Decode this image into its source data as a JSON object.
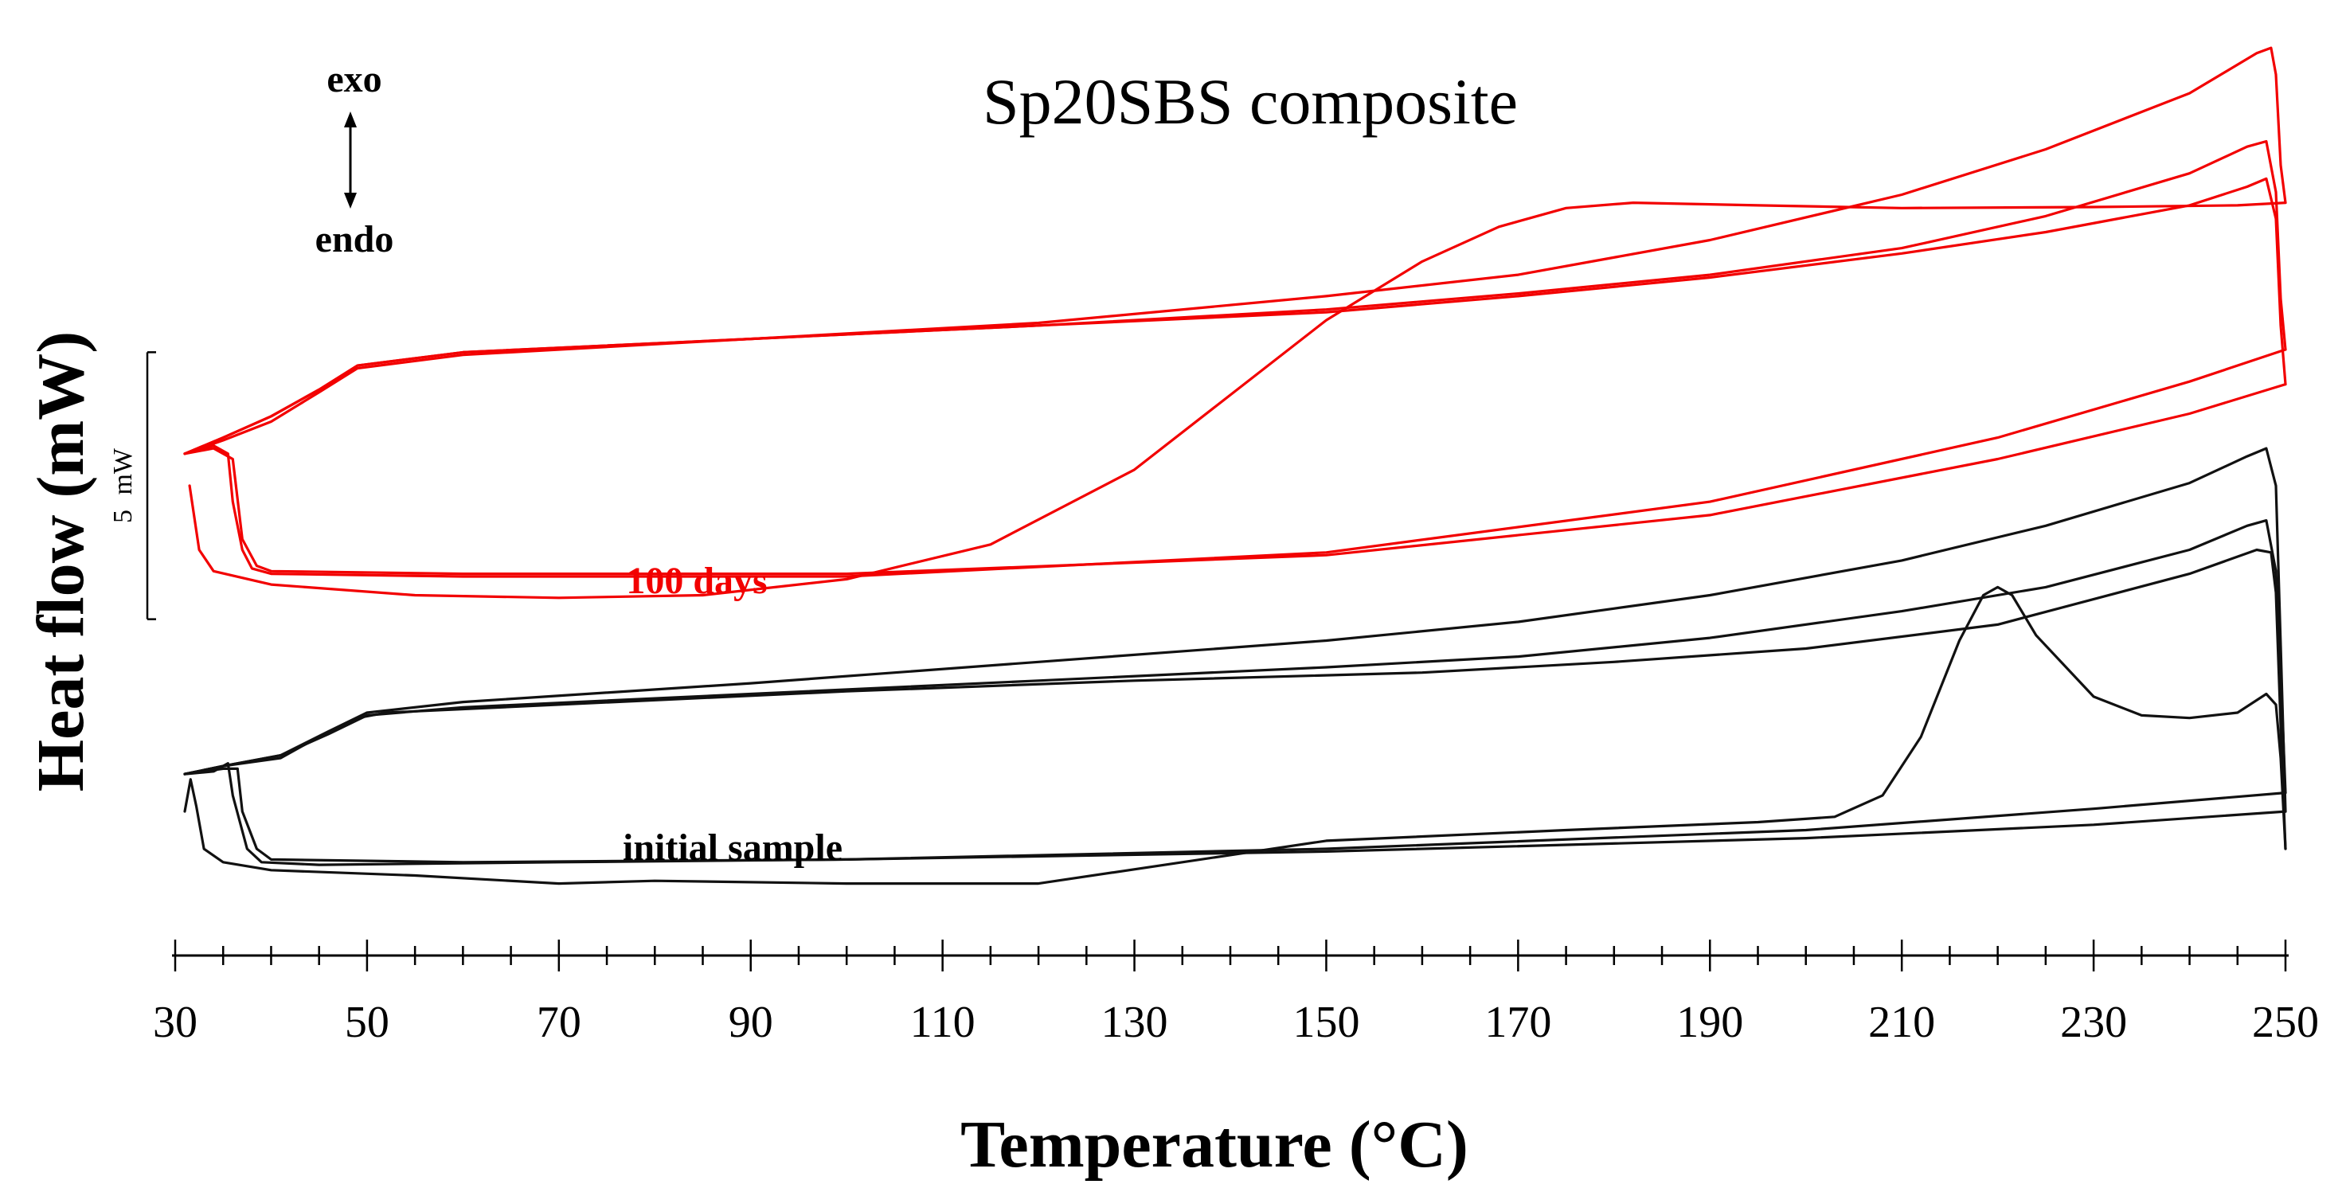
{
  "chart_data": {
    "type": "line",
    "title": "Sp20SBS composite",
    "xlabel": "Temperature (°C)",
    "ylabel": "Heat flow (mW)",
    "xlim": [
      30,
      250
    ],
    "ylim": [
      -6.0,
      11.0
    ],
    "x_ticks": [
      "30",
      "50",
      "70",
      "90",
      "110",
      "130",
      "150",
      "170",
      "190",
      "210",
      "230",
      "250"
    ],
    "x_minor_tick_step": 5,
    "grid": false,
    "scale_bar": {
      "label": "5 mW",
      "from": 0,
      "to": 5
    },
    "annotations": {
      "exo": "exo",
      "endo": "endo",
      "red_group": "100 days",
      "black_group": "initial sample"
    },
    "colors": {
      "red": "#f20000",
      "black": "#111111"
    },
    "series": [
      {
        "name": "100 days - first heating",
        "group": "red",
        "color": "#f20000",
        "points": [
          [
            31.5,
            2.5
          ],
          [
            32.5,
            1.3
          ],
          [
            34,
            0.9
          ],
          [
            40,
            0.65
          ],
          [
            55,
            0.45
          ],
          [
            70,
            0.4
          ],
          [
            85,
            0.45
          ],
          [
            100,
            0.75
          ],
          [
            115,
            1.4
          ],
          [
            130,
            2.8
          ],
          [
            140,
            4.2
          ],
          [
            150,
            5.6
          ],
          [
            160,
            6.7
          ],
          [
            168,
            7.35
          ],
          [
            175,
            7.7
          ],
          [
            182,
            7.8
          ],
          [
            195,
            7.75
          ],
          [
            210,
            7.7
          ],
          [
            230,
            7.72
          ],
          [
            245,
            7.75
          ],
          [
            250,
            7.8
          ]
        ]
      },
      {
        "name": "100 days - first cooling",
        "group": "red",
        "color": "#f20000",
        "points": [
          [
            250,
            7.8
          ],
          [
            249.5,
            8.5
          ],
          [
            249,
            10.2
          ],
          [
            248.5,
            10.7
          ],
          [
            247,
            10.6
          ],
          [
            240,
            9.85
          ],
          [
            225,
            8.8
          ],
          [
            210,
            7.95
          ],
          [
            190,
            7.1
          ],
          [
            170,
            6.45
          ],
          [
            150,
            6.05
          ],
          [
            120,
            5.55
          ],
          [
            90,
            5.25
          ],
          [
            60,
            4.95
          ],
          [
            49,
            4.7
          ],
          [
            45,
            4.25
          ],
          [
            40,
            3.7
          ],
          [
            35,
            3.35
          ],
          [
            31,
            3.1
          ]
        ]
      },
      {
        "name": "100 days - second heating",
        "group": "red",
        "color": "#f20000",
        "points": [
          [
            31,
            3.1
          ],
          [
            34,
            3.25
          ],
          [
            35.5,
            3.1
          ],
          [
            36,
            2.2
          ],
          [
            37,
            1.3
          ],
          [
            38,
            0.95
          ],
          [
            40,
            0.85
          ],
          [
            60,
            0.8
          ],
          [
            100,
            0.8
          ],
          [
            150,
            1.25
          ],
          [
            190,
            2.2
          ],
          [
            220,
            3.4
          ],
          [
            240,
            4.45
          ],
          [
            250,
            5.05
          ]
        ]
      },
      {
        "name": "100 days - second cooling",
        "group": "red",
        "color": "#f20000",
        "points": [
          [
            250,
            5.05
          ],
          [
            249.5,
            6.0
          ],
          [
            249,
            8.0
          ],
          [
            248,
            8.95
          ],
          [
            246,
            8.85
          ],
          [
            240,
            8.35
          ],
          [
            225,
            7.55
          ],
          [
            210,
            6.95
          ],
          [
            190,
            6.45
          ],
          [
            170,
            6.1
          ],
          [
            150,
            5.8
          ],
          [
            120,
            5.5
          ],
          [
            90,
            5.25
          ],
          [
            60,
            5.0
          ],
          [
            49,
            4.75
          ],
          [
            45,
            4.3
          ],
          [
            40,
            3.8
          ],
          [
            35,
            3.4
          ],
          [
            31,
            3.1
          ]
        ]
      },
      {
        "name": "100 days - third heating",
        "group": "red",
        "color": "#f20000",
        "points": [
          [
            31,
            3.1
          ],
          [
            34,
            3.2
          ],
          [
            36,
            3.0
          ],
          [
            37,
            1.5
          ],
          [
            38.5,
            1.0
          ],
          [
            40,
            0.9
          ],
          [
            60,
            0.85
          ],
          [
            100,
            0.85
          ],
          [
            150,
            1.2
          ],
          [
            190,
            1.95
          ],
          [
            220,
            3.0
          ],
          [
            240,
            3.85
          ],
          [
            250,
            4.4
          ]
        ]
      },
      {
        "name": "100 days - third cooling",
        "group": "red",
        "color": "#f20000",
        "points": [
          [
            250,
            4.4
          ],
          [
            249.5,
            5.5
          ],
          [
            249,
            7.5
          ],
          [
            248,
            8.25
          ],
          [
            246,
            8.1
          ],
          [
            240,
            7.75
          ],
          [
            225,
            7.25
          ],
          [
            210,
            6.85
          ],
          [
            190,
            6.4
          ],
          [
            170,
            6.05
          ],
          [
            150,
            5.75
          ],
          [
            120,
            5.5
          ],
          [
            90,
            5.25
          ],
          [
            60,
            5.0
          ],
          [
            49,
            4.75
          ],
          [
            45,
            4.3
          ],
          [
            40,
            3.8
          ],
          [
            35,
            3.4
          ],
          [
            31,
            3.1
          ]
        ]
      },
      {
        "name": "initial sample - first heating",
        "group": "black",
        "color": "#111111",
        "points": [
          [
            31,
            -3.6
          ],
          [
            31.6,
            -3.0
          ],
          [
            32.2,
            -3.5
          ],
          [
            33,
            -4.3
          ],
          [
            35,
            -4.55
          ],
          [
            40,
            -4.7
          ],
          [
            55,
            -4.8
          ],
          [
            70,
            -4.95
          ],
          [
            80,
            -4.9
          ],
          [
            100,
            -4.95
          ],
          [
            120,
            -4.95
          ],
          [
            135,
            -4.55
          ],
          [
            150,
            -4.15
          ],
          [
            175,
            -3.95
          ],
          [
            195,
            -3.8
          ],
          [
            203,
            -3.7
          ],
          [
            208,
            -3.3
          ],
          [
            212,
            -2.2
          ],
          [
            216,
            -0.4
          ],
          [
            218.5,
            0.45
          ],
          [
            220,
            0.6
          ],
          [
            221.5,
            0.45
          ],
          [
            224,
            -0.3
          ],
          [
            230,
            -1.45
          ],
          [
            235,
            -1.8
          ],
          [
            240,
            -1.85
          ],
          [
            245,
            -1.75
          ],
          [
            248,
            -1.4
          ],
          [
            249,
            -1.6
          ],
          [
            249.5,
            -2.6
          ],
          [
            250,
            -4.3
          ]
        ]
      },
      {
        "name": "initial sample - first cooling",
        "group": "black",
        "color": "#111111",
        "points": [
          [
            250,
            -4.3
          ],
          [
            249.5,
            -2.0
          ],
          [
            249,
            0.5
          ],
          [
            248.5,
            1.25
          ],
          [
            247,
            1.3
          ],
          [
            240,
            0.85
          ],
          [
            220,
            -0.1
          ],
          [
            200,
            -0.55
          ],
          [
            180,
            -0.8
          ],
          [
            160,
            -1.0
          ],
          [
            130,
            -1.15
          ],
          [
            100,
            -1.35
          ],
          [
            70,
            -1.6
          ],
          [
            52,
            -1.75
          ],
          [
            49,
            -1.85
          ],
          [
            45,
            -2.2
          ],
          [
            41,
            -2.6
          ],
          [
            35,
            -2.75
          ],
          [
            31,
            -2.9
          ]
        ]
      },
      {
        "name": "initial sample - second heating",
        "group": "black",
        "color": "#111111",
        "points": [
          [
            31,
            -2.9
          ],
          [
            34,
            -2.85
          ],
          [
            35.5,
            -2.7
          ],
          [
            36,
            -3.3
          ],
          [
            37.5,
            -4.3
          ],
          [
            39,
            -4.55
          ],
          [
            45,
            -4.6
          ],
          [
            70,
            -4.55
          ],
          [
            100,
            -4.5
          ],
          [
            150,
            -4.3
          ],
          [
            200,
            -3.95
          ],
          [
            230,
            -3.55
          ],
          [
            250,
            -3.25
          ]
        ]
      },
      {
        "name": "initial sample - second cooling",
        "group": "black",
        "color": "#111111",
        "points": [
          [
            250,
            -3.25
          ],
          [
            249.5,
            -1.0
          ],
          [
            249,
            0.9
          ],
          [
            248,
            1.85
          ],
          [
            246,
            1.75
          ],
          [
            240,
            1.3
          ],
          [
            225,
            0.6
          ],
          [
            210,
            0.15
          ],
          [
            190,
            -0.35
          ],
          [
            170,
            -0.7
          ],
          [
            150,
            -0.9
          ],
          [
            120,
            -1.15
          ],
          [
            90,
            -1.4
          ],
          [
            60,
            -1.65
          ],
          [
            50,
            -1.8
          ],
          [
            46,
            -2.15
          ],
          [
            41,
            -2.55
          ],
          [
            35,
            -2.75
          ],
          [
            31,
            -2.9
          ]
        ]
      },
      {
        "name": "initial sample - third heating",
        "group": "black",
        "color": "#111111",
        "points": [
          [
            31,
            -2.9
          ],
          [
            35,
            -2.8
          ],
          [
            36.5,
            -2.8
          ],
          [
            37,
            -3.6
          ],
          [
            38.5,
            -4.3
          ],
          [
            40,
            -4.5
          ],
          [
            60,
            -4.55
          ],
          [
            100,
            -4.5
          ],
          [
            150,
            -4.35
          ],
          [
            200,
            -4.1
          ],
          [
            230,
            -3.85
          ],
          [
            250,
            -3.6
          ]
        ]
      },
      {
        "name": "initial sample - third cooling",
        "group": "black",
        "color": "#111111",
        "points": [
          [
            250,
            -3.6
          ],
          [
            249.5,
            -0.5
          ],
          [
            249,
            2.5
          ],
          [
            248,
            3.2
          ],
          [
            246,
            3.05
          ],
          [
            240,
            2.55
          ],
          [
            225,
            1.75
          ],
          [
            210,
            1.1
          ],
          [
            190,
            0.45
          ],
          [
            170,
            -0.05
          ],
          [
            150,
            -0.4
          ],
          [
            120,
            -0.8
          ],
          [
            90,
            -1.2
          ],
          [
            60,
            -1.55
          ],
          [
            50,
            -1.75
          ],
          [
            46,
            -2.1
          ],
          [
            41,
            -2.55
          ],
          [
            35,
            -2.75
          ],
          [
            31,
            -2.9
          ]
        ]
      }
    ]
  }
}
